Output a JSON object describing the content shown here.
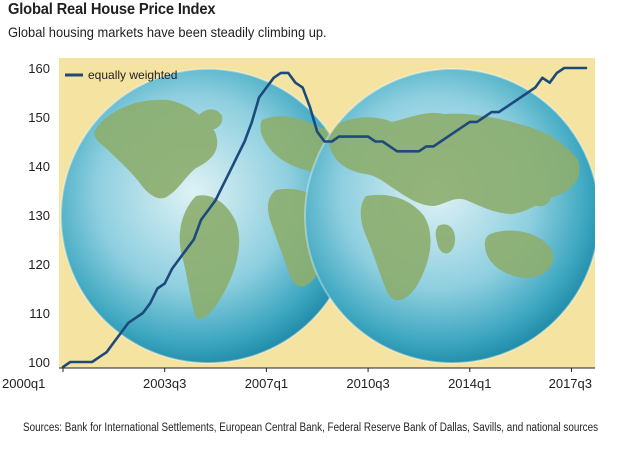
{
  "title": "Global Real House Price Index",
  "subtitle": "Global housing markets have been steadily climbing up.",
  "source": "Sources: Bank for International Settlements, European Central Bank, Federal Reserve Bank of Dallas, Savills, and national sources",
  "colors": {
    "background_panel": "#f4e3a1",
    "line": "#1d4a7c",
    "globe_ocean": "#2f9cb8",
    "globe_land": "#8cae6e"
  },
  "chart_data": {
    "type": "line",
    "title": "Global Real House Price Index",
    "xlabel": "",
    "ylabel": "",
    "ylim": [
      100,
      160
    ],
    "yticks": [
      100,
      110,
      120,
      130,
      140,
      150,
      160
    ],
    "xticks": [
      "2000q1",
      "2003q3",
      "2007q1",
      "2010q3",
      "2014q1",
      "2017q3"
    ],
    "grid": false,
    "legend": {
      "position": "top-left",
      "entries": [
        "equally weighted"
      ]
    },
    "series": [
      {
        "name": "equally weighted",
        "x": [
          "2000q1",
          "2000q2",
          "2000q3",
          "2000q4",
          "2001q1",
          "2001q2",
          "2001q3",
          "2001q4",
          "2002q1",
          "2002q2",
          "2002q3",
          "2002q4",
          "2003q1",
          "2003q2",
          "2003q3",
          "2003q4",
          "2004q1",
          "2004q2",
          "2004q3",
          "2004q4",
          "2005q1",
          "2005q2",
          "2005q3",
          "2005q4",
          "2006q1",
          "2006q2",
          "2006q3",
          "2006q4",
          "2007q1",
          "2007q2",
          "2007q3",
          "2007q4",
          "2008q1",
          "2008q2",
          "2008q3",
          "2008q4",
          "2009q1",
          "2009q2",
          "2009q3",
          "2009q4",
          "2010q1",
          "2010q2",
          "2010q3",
          "2010q4",
          "2011q1",
          "2011q2",
          "2011q3",
          "2011q4",
          "2012q1",
          "2012q2",
          "2012q3",
          "2012q4",
          "2013q1",
          "2013q2",
          "2013q3",
          "2013q4",
          "2014q1",
          "2014q2",
          "2014q3",
          "2014q4",
          "2015q1",
          "2015q2",
          "2015q3",
          "2015q4",
          "2016q1",
          "2016q2",
          "2016q3",
          "2016q4",
          "2017q1",
          "2017q2",
          "2017q3",
          "2017q4",
          "2018q1"
        ],
        "values": [
          99,
          100,
          100,
          100,
          100,
          101,
          102,
          104,
          106,
          108,
          109,
          110,
          112,
          115,
          116,
          119,
          121,
          123,
          125,
          129,
          131,
          133,
          136,
          139,
          142,
          145,
          149,
          154,
          156,
          158,
          159,
          159,
          157,
          156,
          152,
          147,
          145,
          145,
          146,
          146,
          146,
          146,
          146,
          145,
          145,
          144,
          143,
          143,
          143,
          143,
          144,
          144,
          145,
          146,
          147,
          148,
          149,
          149,
          150,
          151,
          151,
          152,
          153,
          154,
          155,
          156,
          158,
          157,
          159,
          160,
          160,
          160,
          160
        ]
      }
    ]
  }
}
